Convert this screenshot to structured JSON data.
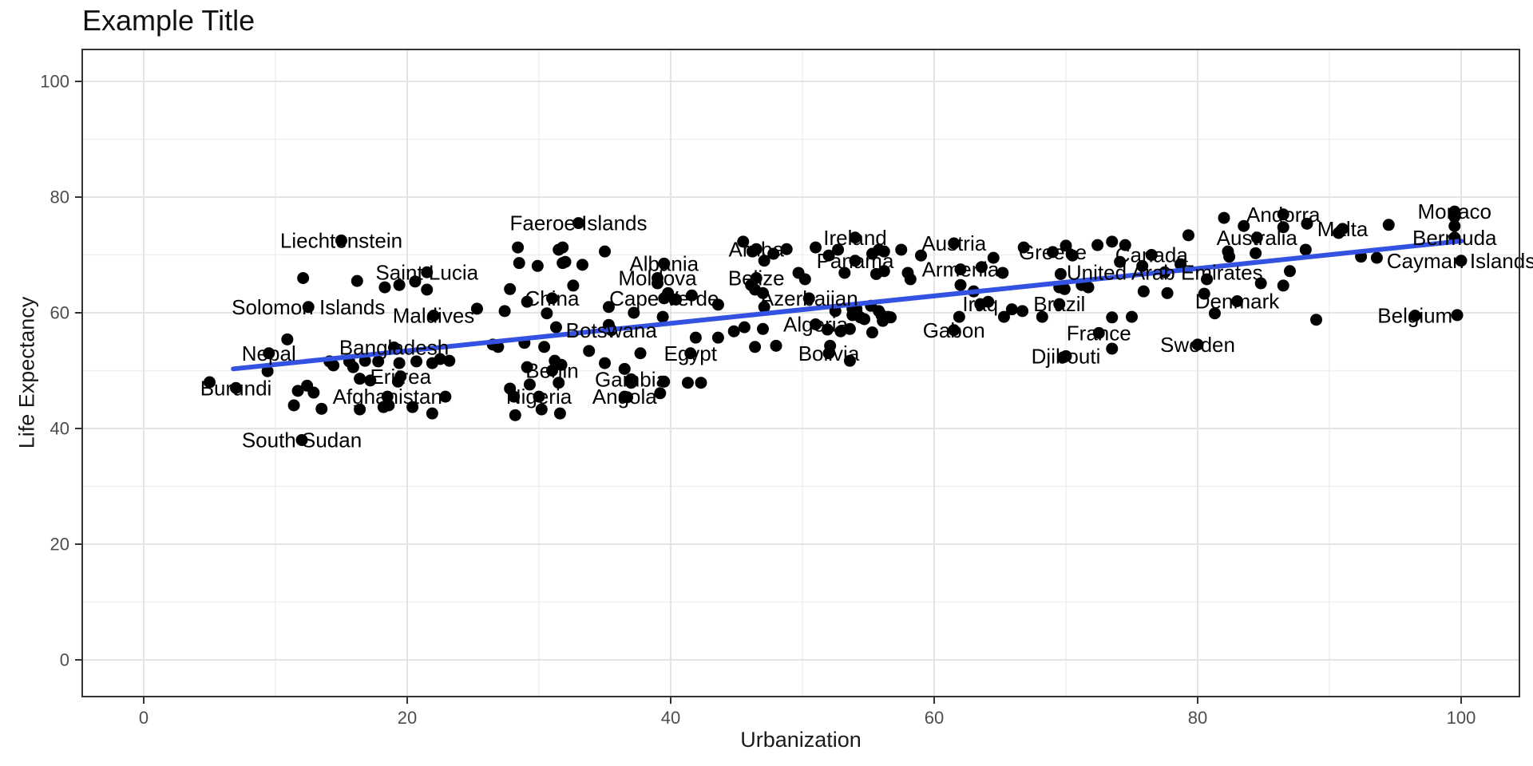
{
  "chart_data": {
    "type": "scatter",
    "title": "Example Title",
    "xlabel": "Urbanization",
    "ylabel": "Life Expectancy",
    "xlim": [
      -4.7,
      104.5
    ],
    "ylim": [
      -6.3,
      105.5
    ],
    "x_ticks": [
      0,
      20,
      40,
      60,
      80,
      100
    ],
    "y_ticks": [
      0,
      20,
      40,
      60,
      80,
      100
    ],
    "grid": "major+minor",
    "legend": "none",
    "colors": {
      "point": "#000000",
      "trend_line": "#3352e1",
      "grid_major": "#e4e4e4",
      "grid_minor": "#f0f0f0",
      "panel_border": "#333333",
      "tick_text": "#4d4d4d"
    },
    "trend": {
      "type": "linear",
      "x1": 6.8,
      "y1": 50.3,
      "x2": 100,
      "y2": 72.4
    },
    "labeled_points": [
      {
        "name": "Burundi",
        "x": 7,
        "y": 47
      },
      {
        "name": "Nepal",
        "x": 9.5,
        "y": 53
      },
      {
        "name": "Solomon Islands",
        "x": 12.5,
        "y": 61
      },
      {
        "name": "South Sudan",
        "x": 12,
        "y": 38
      },
      {
        "name": "Liechtenstein",
        "x": 15,
        "y": 72.5
      },
      {
        "name": "Afghanistan",
        "x": 18.5,
        "y": 45.5
      },
      {
        "name": "Eritrea",
        "x": 19.5,
        "y": 49
      },
      {
        "name": "Bangladesh",
        "x": 19,
        "y": 54
      },
      {
        "name": "Saint Lucia",
        "x": 21.5,
        "y": 67
      },
      {
        "name": "Maldives",
        "x": 22,
        "y": 59.5
      },
      {
        "name": "Nigeria",
        "x": 30,
        "y": 45.5
      },
      {
        "name": "Benin",
        "x": 31,
        "y": 50
      },
      {
        "name": "China",
        "x": 31,
        "y": 62.5
      },
      {
        "name": "Faeroe Islands",
        "x": 33,
        "y": 75.5
      },
      {
        "name": "Angola",
        "x": 36.5,
        "y": 45.5
      },
      {
        "name": "Botswana",
        "x": 35.5,
        "y": 57
      },
      {
        "name": "Gambia",
        "x": 37,
        "y": 48.5
      },
      {
        "name": "Albania",
        "x": 39.5,
        "y": 68.5
      },
      {
        "name": "Moldova",
        "x": 39,
        "y": 66
      },
      {
        "name": "Cape Verde",
        "x": 39.5,
        "y": 62.5
      },
      {
        "name": "Egypt",
        "x": 41.5,
        "y": 53
      },
      {
        "name": "Aruba",
        "x": 46.5,
        "y": 71
      },
      {
        "name": "Belize",
        "x": 46.5,
        "y": 66
      },
      {
        "name": "Azerbaijan",
        "x": 50.5,
        "y": 62.5
      },
      {
        "name": "Algeria",
        "x": 51,
        "y": 58
      },
      {
        "name": "Bolivia",
        "x": 52,
        "y": 53
      },
      {
        "name": "Ireland",
        "x": 54,
        "y": 73
      },
      {
        "name": "Panama",
        "x": 54,
        "y": 69
      },
      {
        "name": "Austria",
        "x": 61.5,
        "y": 72
      },
      {
        "name": "Armenia",
        "x": 62,
        "y": 67.5
      },
      {
        "name": "Gabon",
        "x": 61.5,
        "y": 57
      },
      {
        "name": "Iraq",
        "x": 63.5,
        "y": 61.5
      },
      {
        "name": "Greece",
        "x": 69,
        "y": 70.5
      },
      {
        "name": "Brazil",
        "x": 69.5,
        "y": 61.5
      },
      {
        "name": "Djibouti",
        "x": 70,
        "y": 52.5
      },
      {
        "name": "France",
        "x": 72.5,
        "y": 56.5
      },
      {
        "name": "Canada",
        "x": 76.5,
        "y": 70
      },
      {
        "name": "United Arab Emirates",
        "x": 77.5,
        "y": 67
      },
      {
        "name": "Sweden",
        "x": 80,
        "y": 54.5
      },
      {
        "name": "Denmark",
        "x": 83,
        "y": 62
      },
      {
        "name": "Australia",
        "x": 84.5,
        "y": 73
      },
      {
        "name": "Andorra",
        "x": 86.5,
        "y": 77
      },
      {
        "name": "Malta",
        "x": 91,
        "y": 74.5
      },
      {
        "name": "Belgium",
        "x": 96.5,
        "y": 59.5
      },
      {
        "name": "Monaco",
        "x": 99.5,
        "y": 77.5
      },
      {
        "name": "Bermuda",
        "x": 99.5,
        "y": 73
      },
      {
        "name": "Cayman Islands",
        "x": 100,
        "y": 69
      }
    ],
    "unlabeled_points": [
      [
        5,
        48
      ],
      [
        9.4,
        49.9
      ],
      [
        10.9,
        55.4
      ],
      [
        11.4,
        44
      ],
      [
        11.7,
        46.5
      ],
      [
        12.4,
        47.4
      ],
      [
        12.9,
        46.2
      ],
      [
        13.5,
        43.4
      ],
      [
        14.1,
        51.6
      ],
      [
        14.4,
        50.9
      ],
      [
        15.6,
        51.6
      ],
      [
        15.9,
        50.6
      ],
      [
        16.4,
        48.6
      ],
      [
        16.4,
        43.3
      ],
      [
        16.8,
        51.7
      ],
      [
        17.2,
        48.3
      ],
      [
        17.8,
        51.6
      ],
      [
        18.2,
        43.7
      ],
      [
        18.6,
        44
      ],
      [
        19.3,
        48.1
      ],
      [
        19.4,
        51.3
      ],
      [
        20.4,
        43.7
      ],
      [
        20.7,
        51.6
      ],
      [
        21.9,
        51.3
      ],
      [
        21.9,
        42.6
      ],
      [
        22.5,
        52
      ],
      [
        22.9,
        45.5
      ],
      [
        23.2,
        51.7
      ],
      [
        16.2,
        65.5
      ],
      [
        18.3,
        64.4
      ],
      [
        19.4,
        64.8
      ],
      [
        20.6,
        65.4
      ],
      [
        21.5,
        64
      ],
      [
        12.1,
        66
      ],
      [
        25.3,
        60.7
      ],
      [
        26.5,
        54.5
      ],
      [
        26.9,
        54.1
      ],
      [
        27.4,
        60.3
      ],
      [
        27.8,
        64.1
      ],
      [
        27.8,
        46.9
      ],
      [
        28.1,
        45.5
      ],
      [
        28.2,
        42.3
      ],
      [
        28.4,
        71.3
      ],
      [
        28.5,
        68.6
      ],
      [
        28.9,
        54.8
      ],
      [
        29.1,
        61.9
      ],
      [
        29.1,
        50.6
      ],
      [
        29.3,
        47.6
      ],
      [
        29.9,
        68.1
      ],
      [
        30.2,
        43.3
      ],
      [
        30.4,
        54.1
      ],
      [
        30.6,
        59.9
      ],
      [
        31.2,
        51.7
      ],
      [
        31.3,
        57.5
      ],
      [
        31.5,
        70.9
      ],
      [
        31.5,
        47.9
      ],
      [
        31.6,
        42.6
      ],
      [
        31.7,
        51
      ],
      [
        31.8,
        71.3
      ],
      [
        31.8,
        68.6
      ],
      [
        32,
        68.8
      ],
      [
        32.6,
        64.7
      ],
      [
        33.3,
        68.3
      ],
      [
        33.8,
        53.4
      ],
      [
        35,
        70.6
      ],
      [
        35,
        51.3
      ],
      [
        35.3,
        57.9
      ],
      [
        35.3,
        61
      ],
      [
        36.5,
        50.3
      ],
      [
        36.7,
        45.4
      ],
      [
        37,
        47.9
      ],
      [
        37.2,
        60
      ],
      [
        37.7,
        53
      ],
      [
        39,
        65.1
      ],
      [
        39.2,
        46.1
      ],
      [
        39.4,
        59.3
      ],
      [
        39.5,
        48.1
      ],
      [
        39.8,
        63.4
      ],
      [
        40.4,
        62.3
      ],
      [
        41.3,
        47.9
      ],
      [
        41.6,
        63
      ],
      [
        41.9,
        55.7
      ],
      [
        42.3,
        47.9
      ],
      [
        43.6,
        55.7
      ],
      [
        43.6,
        61.4
      ],
      [
        44.8,
        56.8
      ],
      [
        45.5,
        72.3
      ],
      [
        45.6,
        57.5
      ],
      [
        46.1,
        64.8
      ],
      [
        46.2,
        70.6
      ],
      [
        46.4,
        64
      ],
      [
        46.4,
        54.1
      ],
      [
        47,
        63.4
      ],
      [
        47,
        57.2
      ],
      [
        47.1,
        69
      ],
      [
        47.1,
        61
      ],
      [
        47.8,
        70.2
      ],
      [
        48,
        54.3
      ],
      [
        48.8,
        71
      ],
      [
        49.7,
        66.9
      ],
      [
        50.2,
        65.8
      ],
      [
        51,
        71.3
      ],
      [
        51.9,
        57.1
      ],
      [
        52,
        69.9
      ],
      [
        52.1,
        54.3
      ],
      [
        52.5,
        60.3
      ],
      [
        52.7,
        70.9
      ],
      [
        52.9,
        56.8
      ],
      [
        53.2,
        66.9
      ],
      [
        53.6,
        57.2
      ],
      [
        53.6,
        51.7
      ],
      [
        53.8,
        60.7
      ],
      [
        53.8,
        59.6
      ],
      [
        54.1,
        60.7
      ],
      [
        54.1,
        60.3
      ],
      [
        54.4,
        59.2
      ],
      [
        54.7,
        58.9
      ],
      [
        55.2,
        61.2
      ],
      [
        55.3,
        70.2
      ],
      [
        55.3,
        56.6
      ],
      [
        55.6,
        66.7
      ],
      [
        55.8,
        70.9
      ],
      [
        55.8,
        60.3
      ],
      [
        56,
        59.6
      ],
      [
        56.1,
        58.6
      ],
      [
        56.2,
        70.6
      ],
      [
        56.2,
        67.2
      ],
      [
        56.5,
        59.3
      ],
      [
        56.7,
        59.2
      ],
      [
        57.5,
        70.9
      ],
      [
        58,
        66.9
      ],
      [
        58.2,
        65.8
      ],
      [
        59,
        69.9
      ],
      [
        61.9,
        59.3
      ],
      [
        62,
        64.8
      ],
      [
        63,
        63.7
      ],
      [
        63.6,
        67.9
      ],
      [
        64.1,
        61.9
      ],
      [
        64.5,
        69.5
      ],
      [
        65.2,
        66.9
      ],
      [
        65.3,
        59.3
      ],
      [
        65.9,
        60.6
      ],
      [
        66.7,
        60.3
      ],
      [
        66.8,
        71.3
      ],
      [
        68.2,
        59.3
      ],
      [
        69.5,
        64.4
      ],
      [
        69.6,
        66.7
      ],
      [
        69.8,
        52.3
      ],
      [
        69.9,
        64.1
      ],
      [
        70,
        71.6
      ],
      [
        70.5,
        69.9
      ],
      [
        71.2,
        64.8
      ],
      [
        71.7,
        64.4
      ],
      [
        72.4,
        71.7
      ],
      [
        73.5,
        72.3
      ],
      [
        73.5,
        59.2
      ],
      [
        73.5,
        53.8
      ],
      [
        74.1,
        68.8
      ],
      [
        74.5,
        71.7
      ],
      [
        75,
        59.3
      ],
      [
        75.8,
        68.1
      ],
      [
        75.9,
        63.7
      ],
      [
        77.7,
        63.4
      ],
      [
        78.7,
        68.4
      ],
      [
        79.3,
        73.4
      ],
      [
        80.5,
        63.3
      ],
      [
        80.7,
        65.8
      ],
      [
        81.3,
        59.9
      ],
      [
        82,
        76.4
      ],
      [
        82.3,
        70.6
      ],
      [
        82.4,
        69.7
      ],
      [
        83.5,
        75
      ],
      [
        84.4,
        70.3
      ],
      [
        84.8,
        65.1
      ],
      [
        86.5,
        74.8
      ],
      [
        86.5,
        64.7
      ],
      [
        87,
        67.2
      ],
      [
        88.3,
        75.4
      ],
      [
        88.2,
        70.9
      ],
      [
        89,
        58.8
      ],
      [
        90.7,
        73.8
      ],
      [
        92.4,
        69.7
      ],
      [
        93.6,
        69.5
      ],
      [
        94.5,
        75.2
      ],
      [
        99.5,
        75
      ],
      [
        99.5,
        76.6
      ],
      [
        99.7,
        59.6
      ]
    ]
  }
}
